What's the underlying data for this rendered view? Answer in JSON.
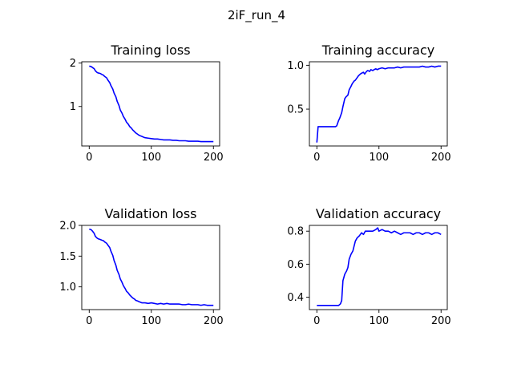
{
  "figure": {
    "suptitle": "2iF_run_4"
  },
  "chart_data": [
    {
      "type": "line",
      "title": "Training loss",
      "xlim": [
        -12,
        210
      ],
      "ylim": [
        0.09,
        2.03
      ],
      "xticks": [
        0,
        100,
        200
      ],
      "yticks": [
        1,
        2
      ],
      "ytick_labels": [
        "1",
        "2"
      ],
      "line_color": "#0000ff",
      "series": [
        {
          "x": [
            0,
            3,
            5,
            8,
            10,
            13,
            15,
            18,
            20,
            23,
            25,
            28,
            30,
            33,
            35,
            38,
            40,
            43,
            45,
            48,
            50,
            53,
            55,
            58,
            60,
            63,
            65,
            68,
            70,
            73,
            75,
            78,
            80,
            83,
            85,
            88,
            90,
            95,
            100,
            105,
            110,
            115,
            120,
            125,
            130,
            135,
            140,
            145,
            150,
            155,
            160,
            165,
            170,
            175,
            180,
            185,
            190,
            195,
            200
          ],
          "values": [
            1.93,
            1.92,
            1.9,
            1.87,
            1.82,
            1.78,
            1.77,
            1.76,
            1.74,
            1.72,
            1.69,
            1.66,
            1.61,
            1.55,
            1.48,
            1.4,
            1.31,
            1.22,
            1.12,
            1.02,
            0.92,
            0.84,
            0.77,
            0.7,
            0.64,
            0.59,
            0.54,
            0.5,
            0.46,
            0.42,
            0.39,
            0.36,
            0.34,
            0.32,
            0.31,
            0.29,
            0.28,
            0.27,
            0.26,
            0.25,
            0.25,
            0.24,
            0.23,
            0.23,
            0.23,
            0.22,
            0.22,
            0.21,
            0.21,
            0.21,
            0.2,
            0.2,
            0.2,
            0.2,
            0.19,
            0.19,
            0.19,
            0.19,
            0.19
          ]
        }
      ]
    },
    {
      "type": "line",
      "title": "Training accuracy",
      "xlim": [
        -12,
        210
      ],
      "ylim": [
        0.08,
        1.04
      ],
      "xticks": [
        0,
        100,
        200
      ],
      "yticks": [
        0.5,
        1.0
      ],
      "ytick_labels": [
        "0.5",
        "1.0"
      ],
      "line_color": "#0000ff",
      "series": [
        {
          "x": [
            0,
            2,
            5,
            10,
            15,
            20,
            25,
            30,
            32,
            35,
            37,
            40,
            42,
            45,
            47,
            50,
            52,
            55,
            57,
            60,
            62,
            65,
            67,
            70,
            72,
            75,
            77,
            80,
            82,
            85,
            87,
            90,
            92,
            95,
            97,
            100,
            105,
            110,
            115,
            120,
            125,
            130,
            135,
            140,
            145,
            150,
            155,
            160,
            165,
            170,
            175,
            180,
            185,
            190,
            195,
            200
          ],
          "values": [
            0.12,
            0.3,
            0.3,
            0.3,
            0.3,
            0.3,
            0.3,
            0.3,
            0.31,
            0.37,
            0.4,
            0.46,
            0.53,
            0.62,
            0.64,
            0.66,
            0.72,
            0.76,
            0.79,
            0.82,
            0.83,
            0.86,
            0.88,
            0.9,
            0.91,
            0.92,
            0.9,
            0.93,
            0.94,
            0.93,
            0.95,
            0.94,
            0.95,
            0.96,
            0.95,
            0.96,
            0.97,
            0.96,
            0.97,
            0.97,
            0.97,
            0.98,
            0.97,
            0.98,
            0.98,
            0.98,
            0.98,
            0.98,
            0.98,
            0.99,
            0.98,
            0.98,
            0.99,
            0.98,
            0.99,
            0.99
          ]
        }
      ]
    },
    {
      "type": "line",
      "title": "Validation loss",
      "xlim": [
        -12,
        210
      ],
      "ylim": [
        0.63,
        2.0
      ],
      "xticks": [
        0,
        100,
        200
      ],
      "yticks": [
        1.0,
        1.5,
        2.0
      ],
      "ytick_labels": [
        "1.0",
        "1.5",
        "2.0"
      ],
      "line_color": "#0000ff",
      "series": [
        {
          "x": [
            0,
            3,
            5,
            8,
            10,
            13,
            15,
            18,
            20,
            23,
            25,
            28,
            30,
            33,
            35,
            38,
            40,
            43,
            45,
            48,
            50,
            53,
            55,
            58,
            60,
            63,
            65,
            68,
            70,
            73,
            75,
            78,
            80,
            85,
            90,
            95,
            100,
            105,
            110,
            115,
            120,
            125,
            130,
            135,
            140,
            145,
            150,
            155,
            160,
            165,
            170,
            175,
            180,
            185,
            190,
            195,
            200
          ],
          "values": [
            1.94,
            1.93,
            1.91,
            1.87,
            1.82,
            1.79,
            1.78,
            1.77,
            1.76,
            1.75,
            1.73,
            1.71,
            1.68,
            1.64,
            1.58,
            1.51,
            1.43,
            1.35,
            1.27,
            1.2,
            1.13,
            1.07,
            1.02,
            0.97,
            0.93,
            0.9,
            0.87,
            0.84,
            0.82,
            0.8,
            0.78,
            0.77,
            0.76,
            0.74,
            0.74,
            0.73,
            0.74,
            0.73,
            0.72,
            0.73,
            0.72,
            0.73,
            0.72,
            0.72,
            0.72,
            0.72,
            0.71,
            0.71,
            0.72,
            0.71,
            0.71,
            0.71,
            0.7,
            0.71,
            0.7,
            0.7,
            0.7
          ]
        }
      ]
    },
    {
      "type": "line",
      "title": "Validation accuracy",
      "xlim": [
        -12,
        210
      ],
      "ylim": [
        0.325,
        0.835
      ],
      "xticks": [
        0,
        100,
        200
      ],
      "yticks": [
        0.4,
        0.6,
        0.8
      ],
      "ytick_labels": [
        "0.4",
        "0.6",
        "0.8"
      ],
      "line_color": "#0000ff",
      "series": [
        {
          "x": [
            0,
            5,
            10,
            15,
            20,
            25,
            30,
            35,
            38,
            40,
            42,
            45,
            48,
            50,
            52,
            55,
            58,
            60,
            62,
            65,
            68,
            70,
            72,
            75,
            78,
            80,
            85,
            90,
            95,
            98,
            100,
            105,
            110,
            115,
            120,
            125,
            130,
            135,
            140,
            145,
            150,
            155,
            160,
            165,
            170,
            175,
            180,
            185,
            190,
            195,
            200
          ],
          "values": [
            0.35,
            0.35,
            0.35,
            0.35,
            0.35,
            0.35,
            0.35,
            0.35,
            0.36,
            0.38,
            0.5,
            0.54,
            0.56,
            0.58,
            0.63,
            0.66,
            0.68,
            0.71,
            0.74,
            0.76,
            0.77,
            0.78,
            0.79,
            0.78,
            0.8,
            0.8,
            0.8,
            0.8,
            0.81,
            0.82,
            0.8,
            0.81,
            0.8,
            0.8,
            0.79,
            0.8,
            0.79,
            0.78,
            0.79,
            0.79,
            0.79,
            0.78,
            0.79,
            0.79,
            0.78,
            0.79,
            0.79,
            0.78,
            0.79,
            0.79,
            0.78
          ]
        }
      ]
    }
  ]
}
